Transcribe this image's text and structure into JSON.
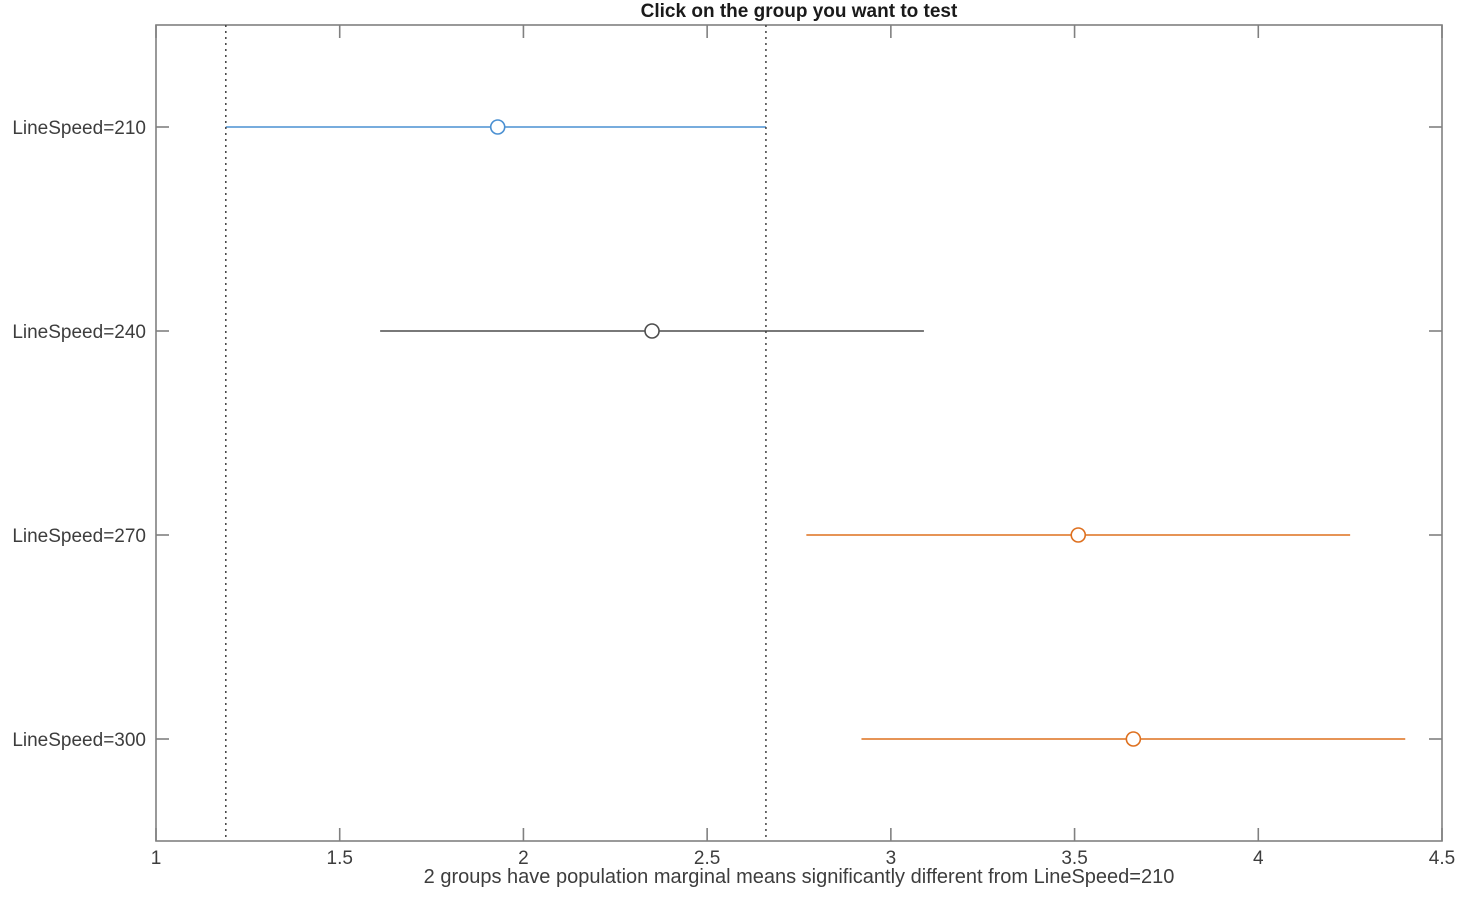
{
  "figure": {
    "title": "Click on the group you want to test",
    "xlabel": "2 groups have population marginal means significantly different from LineSpeed=210",
    "background": "#ffffff"
  },
  "colors": {
    "selected_group": "#4A90D2",
    "not_significant_group": "#4D4D4D",
    "significant_group": "#DE701F",
    "axis": "#808080",
    "reference_line": "#404040",
    "tick_text": "#3d3d3d",
    "title_text": "#1a1a1a"
  },
  "chart_data": {
    "type": "interval",
    "orientation": "horizontal",
    "title": "Click on the group you want to test",
    "xlabel": "2 groups have population marginal means significantly different from LineSpeed=210",
    "xlim": [
      1,
      4.5
    ],
    "xticks": [
      1,
      1.5,
      2,
      2.5,
      3,
      3.5,
      4,
      4.5
    ],
    "xtick_labels": [
      "1",
      "1.5",
      "2",
      "2.5",
      "3",
      "3.5",
      "4",
      "4.5"
    ],
    "grid": false,
    "legend": null,
    "groups": [
      {
        "label": "LineSpeed=210",
        "mean": 1.93,
        "ci_low": 1.19,
        "ci_high": 2.66,
        "status": "selected",
        "color": "#4A90D2"
      },
      {
        "label": "LineSpeed=240",
        "mean": 2.35,
        "ci_low": 1.61,
        "ci_high": 3.09,
        "status": "not_significant",
        "color": "#4D4D4D"
      },
      {
        "label": "LineSpeed=270",
        "mean": 3.51,
        "ci_low": 2.77,
        "ci_high": 4.25,
        "status": "significant",
        "color": "#DE701F"
      },
      {
        "label": "LineSpeed=300",
        "mean": 3.66,
        "ci_low": 2.92,
        "ci_high": 4.4,
        "status": "significant",
        "color": "#DE701F"
      }
    ],
    "reference_lines": [
      1.19,
      2.66
    ]
  }
}
